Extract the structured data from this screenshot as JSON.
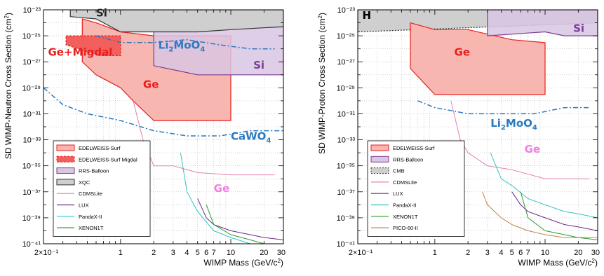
{
  "chart_data": [
    {
      "type": "line",
      "panel": "left",
      "xlabel": "WIMP Mass (GeV/c2)",
      "xlabel_unit": "2",
      "ylabel": "SD WIMP-Neutron Cross Section (cm2)",
      "xscale": "log",
      "yscale": "log",
      "xlim": [
        0.2,
        30
      ],
      "ylim": [
        1e-41,
        1e-23
      ],
      "grid": true,
      "xticks": [
        "2×10⁻¹",
        "1",
        "2",
        "3",
        "4",
        "5",
        "6",
        "7",
        "10",
        "20",
        "30"
      ],
      "yticks": [
        "10⁻²³",
        "10⁻²⁵",
        "10⁻²⁷",
        "10⁻²⁹",
        "10⁻³¹",
        "10⁻³³",
        "10⁻³⁵",
        "10⁻³⁷",
        "10⁻³⁹",
        "10⁻⁴¹"
      ],
      "legend_position": "bottom-left",
      "legend": [
        {
          "label": "EDELWEISS-Surf",
          "style": "solid-fill",
          "color": "#e8201f"
        },
        {
          "label": "EDELWEISS-Surf Migdal",
          "style": "dashed-fill",
          "color": "#e8201f"
        },
        {
          "label": "RRS-Balloon",
          "style": "fill",
          "color": "#7a3f92"
        },
        {
          "label": "XQC",
          "style": "fill",
          "color": "#333333"
        },
        {
          "label": "CDMSLite",
          "style": "line",
          "color": "#e57fb3"
        },
        {
          "label": "LUX",
          "style": "line",
          "color": "#6b2a85"
        },
        {
          "label": "PandaX-II",
          "style": "line",
          "color": "#2ec4c4"
        },
        {
          "label": "XENON1T",
          "style": "line",
          "color": "#2c9a2c"
        }
      ],
      "annotations": [
        {
          "text": "Si",
          "color": "#222222",
          "x": 0.6,
          "y": 3e-24
        },
        {
          "text": "Ge+Migdal",
          "color": "#e8201f",
          "x": 0.22,
          "y": 3e-27
        },
        {
          "text": "Ge",
          "color": "#e8201f",
          "x": 1.6,
          "y": 1e-29
        },
        {
          "text": "Si",
          "color": "#7a3f92",
          "x": 16,
          "y": 3e-28
        },
        {
          "text": "CaWO",
          "sub": "4",
          "color": "#2a7ac0",
          "x": 10,
          "y": 1e-33
        },
        {
          "text": "Ge",
          "color": "#f07fe0",
          "x": 7,
          "y": 1e-37
        }
      ],
      "formula_label": {
        "text": "Li",
        "sub1": "2",
        "mid": "MoO",
        "sub2": "4",
        "color": "#2a7ac0",
        "x": 2.2,
        "y": 1e-26
      },
      "series": [
        {
          "name": "EDELWEISS-Surf",
          "kind": "region",
          "x": [
            0.45,
            0.6,
            1,
            2,
            5,
            10,
            10,
            5,
            2,
            1.3,
            1,
            0.6,
            0.45
          ],
          "y": [
            2e-24,
            1e-24,
            2e-25,
            1e-25,
            1e-25,
            1e-25,
            3e-32,
            3e-32,
            3e-32,
            1e-30,
            1e-29,
            1e-28,
            1e-27
          ]
        },
        {
          "name": "EDELWEISS-Surf Migdal",
          "kind": "dashed-region",
          "x": [
            0.32,
            1.0,
            1.0,
            0.65,
            0.32
          ],
          "y": [
            1e-25,
            1e-25,
            3e-27,
            3e-27,
            2e-26
          ]
        },
        {
          "name": "RRS-Balloon",
          "kind": "region",
          "x": [
            2,
            30,
            30,
            25,
            10,
            5,
            2
          ],
          "y": [
            1e-24,
            1e-24,
            1e-28,
            1e-28,
            1e-28,
            1e-28,
            5e-28
          ]
        },
        {
          "name": "XQC",
          "kind": "region",
          "x": [
            0.35,
            30,
            30,
            10,
            5,
            2,
            1,
            0.6,
            0.35
          ],
          "y": [
            1e-23,
            1e-23,
            5e-25,
            3e-25,
            2e-25,
            2e-25,
            2e-25,
            2e-24,
            3e-24
          ]
        },
        {
          "name": "Li2MoO4",
          "kind": "dash-dot",
          "x": [
            0.6,
            1,
            2,
            4,
            8,
            15,
            25
          ],
          "y": [
            1e-25,
            3e-26,
            3e-26,
            5e-26,
            2e-26,
            1e-26,
            1e-26
          ]
        },
        {
          "name": "CaWO4",
          "kind": "dash-dot",
          "x": [
            0.2,
            0.3,
            0.5,
            1,
            2,
            4,
            8,
            15,
            30
          ],
          "y": [
            1e-29,
            5e-31,
            1e-31,
            3e-32,
            5e-33,
            2e-33,
            2e-33,
            5e-33,
            5e-33
          ]
        },
        {
          "name": "CDMSLite",
          "kind": "line",
          "x": [
            1.3,
            1.6,
            2,
            3,
            5,
            10,
            20,
            25
          ],
          "y": [
            1e-30,
            1e-33,
            1e-35,
            1e-35,
            3e-36,
            2e-36,
            2e-36,
            2e-36
          ]
        },
        {
          "name": "PandaX-II",
          "kind": "line",
          "x": [
            3.5,
            4,
            5,
            7,
            10,
            15,
            20,
            30
          ],
          "y": [
            1e-34,
            1e-37,
            3e-39,
            1e-40,
            3e-41,
            1e-41,
            8e-42,
            5e-42
          ]
        },
        {
          "name": "LUX",
          "kind": "line",
          "x": [
            5,
            6,
            7,
            10,
            15,
            20,
            30
          ],
          "y": [
            3e-38,
            1e-39,
            3e-40,
            1e-40,
            5e-41,
            3e-41,
            2e-41
          ]
        },
        {
          "name": "XENON1T",
          "kind": "line",
          "x": [
            6,
            7,
            10,
            15,
            20,
            30
          ],
          "y": [
            1e-38,
            3e-40,
            5e-41,
            2e-41,
            1e-41,
            5e-42
          ]
        }
      ]
    },
    {
      "type": "line",
      "panel": "right",
      "xlabel": "WIMP Mass (GeV/c2)",
      "xlabel_unit": "2",
      "ylabel": "SD WIMP-Proton Cross Section (cm2)",
      "xscale": "log",
      "yscale": "log",
      "xlim": [
        0.2,
        30
      ],
      "ylim": [
        1e-41,
        1e-23
      ],
      "grid": true,
      "xticks": [
        "2×10⁻¹",
        "1",
        "2",
        "3",
        "4",
        "5",
        "6",
        "7",
        "10",
        "20",
        "30"
      ],
      "yticks": [
        "10⁻²³",
        "10⁻²⁵",
        "10⁻²⁷",
        "10⁻²⁹",
        "10⁻³¹",
        "10⁻³³",
        "10⁻³⁵",
        "10⁻³⁷",
        "10⁻³⁹",
        "10⁻⁴¹"
      ],
      "legend_position": "bottom-left",
      "legend": [
        {
          "label": "EDELWEISS-Surf",
          "style": "solid-fill",
          "color": "#e8201f"
        },
        {
          "label": "RRS-Balloon",
          "style": "fill",
          "color": "#7a3f92"
        },
        {
          "label": "CMB",
          "style": "dotted-fill",
          "color": "#333333"
        },
        {
          "label": "CDMSLite",
          "style": "line",
          "color": "#e57fb3"
        },
        {
          "label": "LUX",
          "style": "line",
          "color": "#6b2a85"
        },
        {
          "label": "PandaX-II",
          "style": "line",
          "color": "#2ec4c4"
        },
        {
          "label": "XENON1T",
          "style": "line",
          "color": "#2c9a2c"
        },
        {
          "label": "PICO-60-II",
          "style": "line",
          "color": "#c0834a"
        }
      ],
      "annotations": [
        {
          "text": "H",
          "color": "#000000",
          "x": 0.22,
          "y": 2e-24
        },
        {
          "text": "Ge",
          "color": "#e8201f",
          "x": 1.5,
          "y": 3e-27
        },
        {
          "text": "Si",
          "color": "#7a3f92",
          "x": 18,
          "y": 2e-25
        },
        {
          "text": "Ge",
          "color": "#f07fe0",
          "x": 6.5,
          "y": 1e-34
        }
      ],
      "formula_label": {
        "text": "Li",
        "sub1": "2",
        "mid": "MoO",
        "sub2": "4",
        "color": "#2a7ac0",
        "x": 3.2,
        "y": 1e-32
      },
      "series": [
        {
          "name": "CMB",
          "kind": "dotted-region",
          "x": [
            0.2,
            30,
            30,
            0.2
          ],
          "y": [
            1e-23,
            1e-23,
            1e-24,
            2e-25
          ]
        },
        {
          "name": "EDELWEISS-Surf",
          "kind": "region",
          "x": [
            0.6,
            1,
            2,
            5,
            10,
            10,
            5,
            2,
            1,
            0.6
          ],
          "y": [
            1e-24,
            3e-25,
            3e-25,
            5e-26,
            3e-26,
            3e-30,
            3e-30,
            3e-30,
            3e-30,
            3e-28
          ]
        },
        {
          "name": "RRS-Balloon",
          "kind": "region",
          "x": [
            3,
            30,
            30,
            15,
            10,
            3
          ],
          "y": [
            1e-23,
            1e-23,
            1e-25,
            1e-25,
            2e-25,
            1e-25
          ]
        },
        {
          "name": "Li2MoO4",
          "kind": "dash-dot",
          "x": [
            0.7,
            1,
            2,
            4,
            8,
            15,
            25
          ],
          "y": [
            1e-30,
            3e-31,
            1e-31,
            1e-31,
            1e-31,
            3e-31,
            3e-31
          ]
        },
        {
          "name": "CDMSLite",
          "kind": "line",
          "x": [
            1.4,
            1.7,
            2,
            3,
            5,
            10,
            20,
            25
          ],
          "y": [
            1e-30,
            1e-33,
            1e-34,
            1e-35,
            5e-36,
            1e-36,
            1e-36,
            1e-36
          ]
        },
        {
          "name": "PandaX-II",
          "kind": "line",
          "x": [
            3.2,
            4,
            5,
            7,
            10,
            15,
            20,
            30
          ],
          "y": [
            1e-34,
            1e-36,
            3e-37,
            3e-38,
            1e-38,
            3e-39,
            2e-39,
            1e-39
          ]
        },
        {
          "name": "LUX",
          "kind": "line",
          "x": [
            5,
            6,
            7,
            10,
            15,
            20,
            30
          ],
          "y": [
            1e-37,
            1e-38,
            3e-39,
            1e-39,
            3e-40,
            2e-40,
            1e-40
          ]
        },
        {
          "name": "XENON1T",
          "kind": "line",
          "x": [
            6,
            7,
            10,
            15,
            20,
            30
          ],
          "y": [
            1e-37,
            1e-39,
            1e-40,
            5e-41,
            3e-41,
            2e-41
          ]
        },
        {
          "name": "PICO-60-II",
          "kind": "line",
          "x": [
            2.7,
            3,
            4,
            5,
            7,
            10,
            15,
            30
          ],
          "y": [
            1e-37,
            1e-38,
            1e-39,
            3e-40,
            1e-40,
            5e-41,
            3e-41,
            3e-41
          ]
        }
      ]
    }
  ],
  "colors": {
    "edelweiss_fill": "#f8b6b0",
    "edelweiss_line": "#e8201f",
    "migdal_fill": "#f25f5c",
    "rrs_fill": "#d9c6e3",
    "rrs_line": "#7a3f92",
    "xqc_fill": "#cfcfcf",
    "xqc_line": "#333333",
    "li2moo4": "#2a7ac0",
    "cawo4": "#2a7ac0",
    "cdmslite": "#e57fb3",
    "lux": "#6b2a85",
    "pandax": "#2ec4c4",
    "xenon1t": "#2c9a2c",
    "pico": "#c0834a"
  }
}
